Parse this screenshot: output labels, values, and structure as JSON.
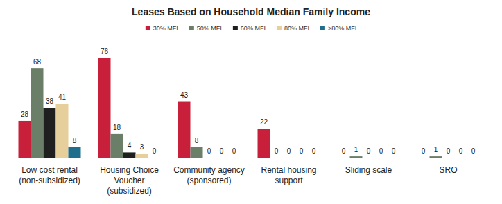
{
  "chart_data": {
    "type": "bar",
    "title": "Leases Based on Household Median Family Income",
    "categories": [
      "Low cost rental\n(non-subsidized)",
      "Housing Choice\nVoucher\n(subsidized)",
      "Community agency\n(sponsored)",
      "Rental housing\nsupport",
      "Sliding scale",
      "SRO"
    ],
    "series": [
      {
        "name": "30% MFI",
        "color": "#c8203a",
        "values": [
          28,
          76,
          43,
          22,
          0,
          0
        ]
      },
      {
        "name": "50% MFI",
        "color": "#6b7f68",
        "values": [
          68,
          18,
          8,
          0,
          1,
          1
        ]
      },
      {
        "name": "60% MFI",
        "color": "#1f1f1f",
        "values": [
          38,
          4,
          0,
          0,
          0,
          0
        ]
      },
      {
        "name": "80% MFI",
        "color": "#e6cf9a",
        "values": [
          41,
          3,
          0,
          0,
          0,
          0
        ]
      },
      {
        "name": ">80% MFI",
        "color": "#1f6e8c",
        "values": [
          8,
          0,
          0,
          0,
          0,
          0
        ]
      }
    ],
    "ylim": [
      0,
      76
    ],
    "data_labels": true,
    "tick_labels": "x",
    "legend": "top",
    "grid": false
  }
}
